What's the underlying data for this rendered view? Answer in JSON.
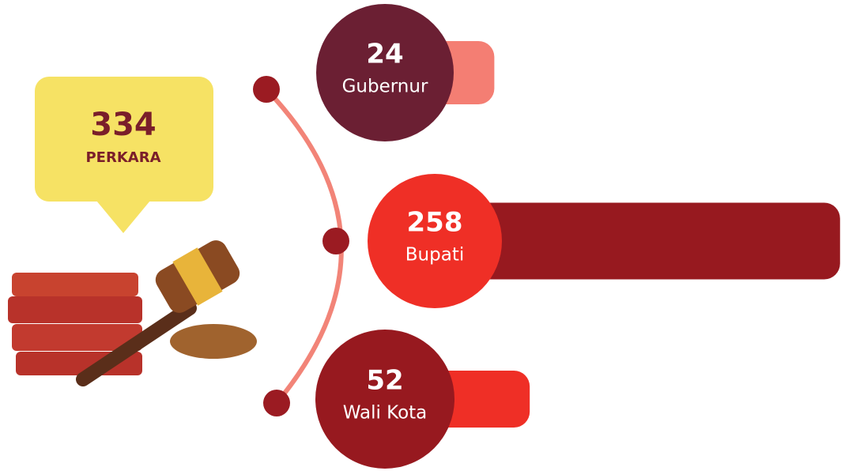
{
  "chart_data": {
    "type": "bar",
    "total": 334,
    "total_label": "PERKARA",
    "categories": [
      "Gubernur",
      "Bupati",
      "Wali Kota"
    ],
    "values": [
      24,
      258,
      52
    ],
    "circle_colors": [
      "#6b1f33",
      "#ef2f26",
      "#97191f"
    ],
    "bar_colors": [
      "#f47e73",
      "#97191f",
      "#ef2f26"
    ]
  }
}
